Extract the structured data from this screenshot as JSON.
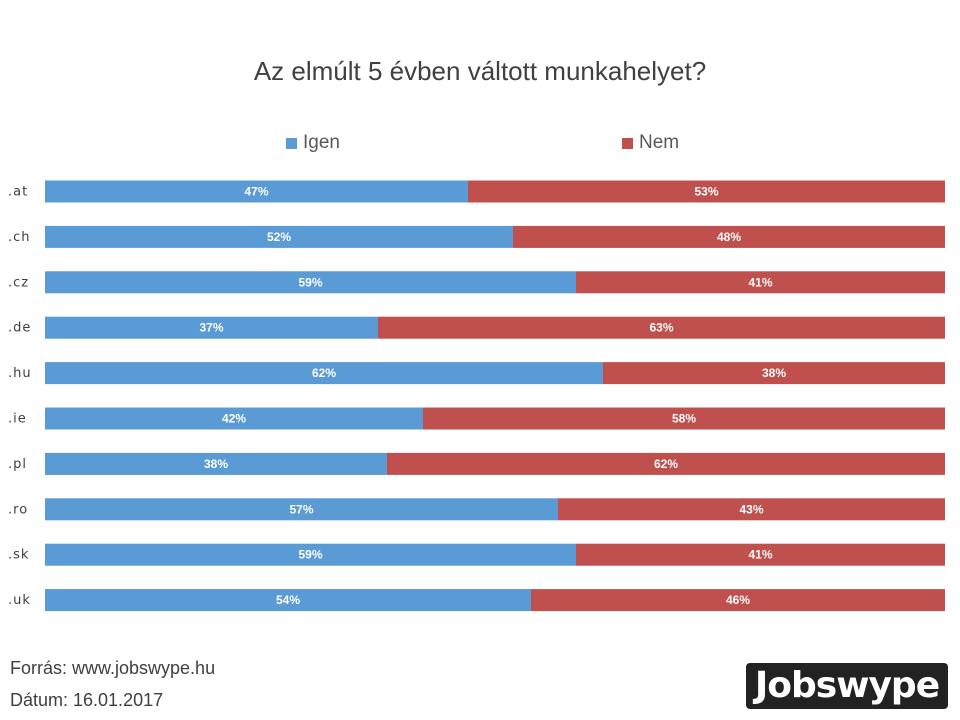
{
  "chart_data": {
    "type": "bar",
    "orientation": "horizontal",
    "stacked": true,
    "title": "Az elmúlt 5 évben váltott munkahelyet?",
    "categories": [
      ".at",
      ".ch",
      ".cz",
      ".de",
      ".hu",
      ".ie",
      ".pl",
      ".ro",
      ".sk",
      ".uk"
    ],
    "series": [
      {
        "name": "Igen",
        "color": "#5b9bd5",
        "values": [
          47,
          52,
          59,
          37,
          62,
          42,
          38,
          57,
          59,
          54
        ]
      },
      {
        "name": "Nem",
        "color": "#c0504d",
        "values": [
          53,
          48,
          41,
          63,
          38,
          58,
          62,
          43,
          41,
          46
        ]
      }
    ],
    "value_suffix": "%",
    "xlim": [
      0,
      100
    ],
    "legend": "top-center",
    "grid": false
  },
  "footer": {
    "source": "Forrás: www.jobswype.hu",
    "date": "Dátum: 16.01.2017"
  },
  "logo": {
    "text": "Jobswype"
  }
}
